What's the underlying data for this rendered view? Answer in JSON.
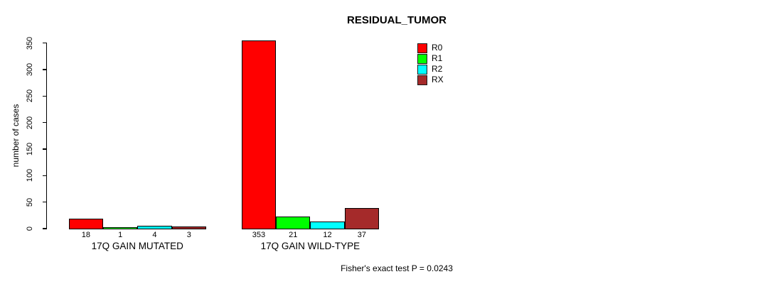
{
  "chart_data": {
    "type": "bar",
    "title": "RESIDUAL_TUMOR",
    "ylabel": "number of cases",
    "xlabel": "",
    "categories": [
      "17Q GAIN MUTATED",
      "17Q GAIN WILD-TYPE"
    ],
    "series": [
      {
        "name": "R0",
        "color": "#FF0000",
        "values": [
          18,
          353
        ]
      },
      {
        "name": "R1",
        "color": "#00FF00",
        "values": [
          1,
          21
        ]
      },
      {
        "name": "R2",
        "color": "#00FFFF",
        "values": [
          4,
          12
        ]
      },
      {
        "name": "RX",
        "color": "#A52A2A",
        "values": [
          3,
          37
        ]
      }
    ],
    "yticks": [
      0,
      50,
      100,
      150,
      200,
      250,
      300,
      350
    ],
    "ylim": [
      0,
      350
    ],
    "grid": false,
    "legend_position": "right",
    "bar_value_labels": true,
    "bar_border_color": "#000000",
    "annotation": "Fisher's exact test P = 0.0243"
  }
}
